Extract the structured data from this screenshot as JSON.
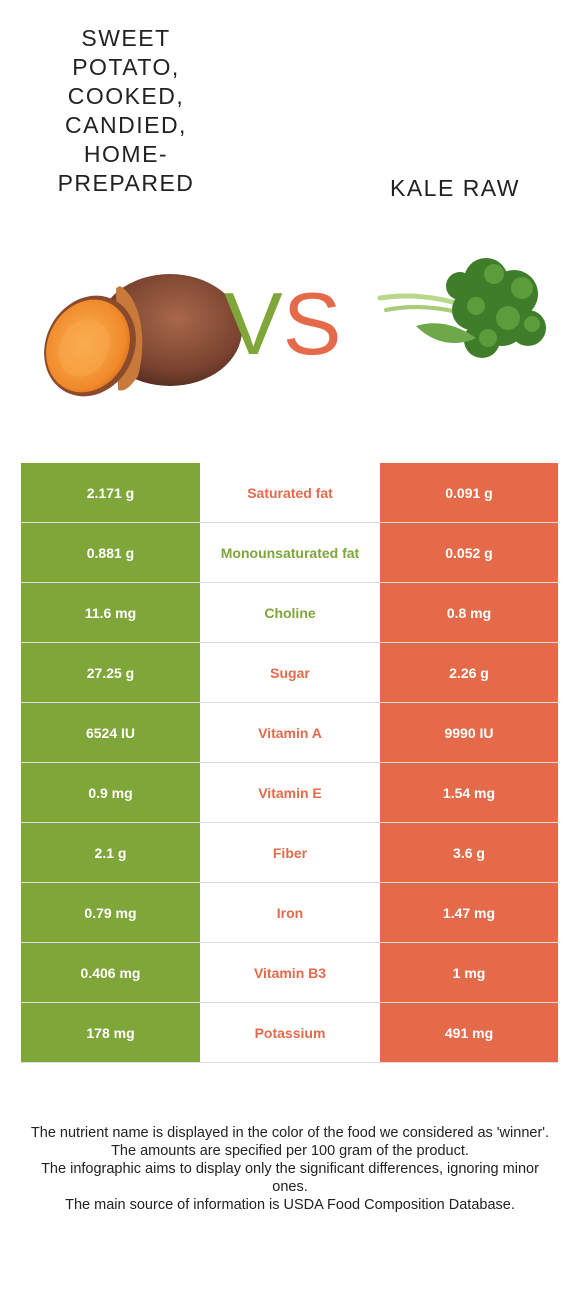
{
  "colors": {
    "left_winner": "#7fa638",
    "right_winner": "#e46a4a"
  },
  "left_food": {
    "title_lines": [
      "SWEET",
      "POTATO,",
      "COOKED,",
      "CANDIED,",
      "HOME-",
      "PREPARED"
    ],
    "image": "sweet-potato-image"
  },
  "right_food": {
    "title": "KALE RAW",
    "image": "kale-image"
  },
  "vs": {
    "v": "V",
    "s": "S"
  },
  "rows": [
    {
      "left": "2.171 g",
      "nutrient": "Saturated fat",
      "right": "0.091 g",
      "winner": "right"
    },
    {
      "left": "0.881 g",
      "nutrient": "Monounsaturated fat",
      "right": "0.052 g",
      "winner": "left"
    },
    {
      "left": "11.6 mg",
      "nutrient": "Choline",
      "right": "0.8 mg",
      "winner": "left"
    },
    {
      "left": "27.25 g",
      "nutrient": "Sugar",
      "right": "2.26 g",
      "winner": "right"
    },
    {
      "left": "6524 IU",
      "nutrient": "Vitamin A",
      "right": "9990 IU",
      "winner": "right"
    },
    {
      "left": "0.9 mg",
      "nutrient": "Vitamin E",
      "right": "1.54 mg",
      "winner": "right"
    },
    {
      "left": "2.1 g",
      "nutrient": "Fiber",
      "right": "3.6 g",
      "winner": "right"
    },
    {
      "left": "0.79 mg",
      "nutrient": "Iron",
      "right": "1.47 mg",
      "winner": "right"
    },
    {
      "left": "0.406 mg",
      "nutrient": "Vitamin B3",
      "right": "1 mg",
      "winner": "right"
    },
    {
      "left": "178 mg",
      "nutrient": "Potassium",
      "right": "491 mg",
      "winner": "right"
    }
  ],
  "footer": [
    "The nutrient name is displayed in the color of the food we considered as 'winner'.",
    "The amounts are specified per 100 gram of the product.",
    "The infographic aims to display only the significant differences, ignoring minor ones.",
    "The main source of information is USDA Food Composition Database."
  ]
}
